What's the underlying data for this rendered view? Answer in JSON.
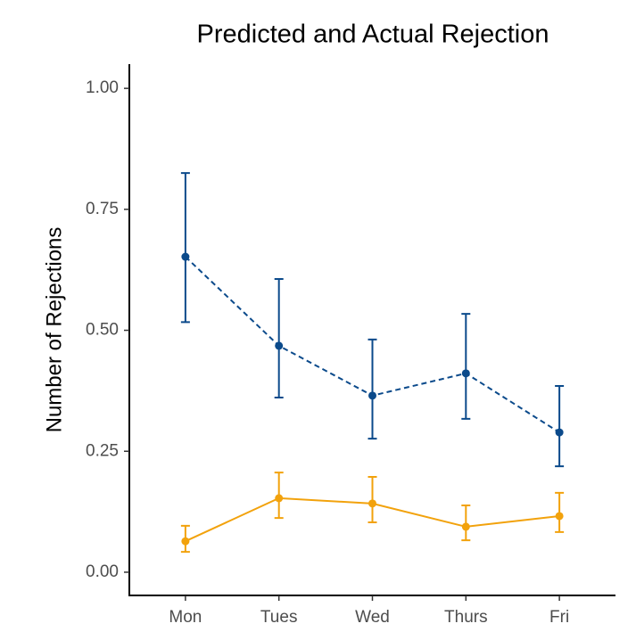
{
  "chart_data": {
    "type": "line",
    "title": "Predicted and Actual Rejection",
    "y_label": "Number of Rejections",
    "categories": [
      "Mon",
      "Tues",
      "Wed",
      "Thurs",
      "Fri"
    ],
    "series": [
      {
        "color": "#0b4a8b",
        "line_style": "dashed",
        "values": [
          0.652,
          0.468,
          0.365,
          0.411,
          0.289
        ],
        "lower": [
          0.517,
          0.361,
          0.276,
          0.317,
          0.219
        ],
        "upper": [
          0.825,
          0.606,
          0.481,
          0.534,
          0.385
        ]
      },
      {
        "color": "#f2a20c",
        "line_style": "solid",
        "values": [
          0.064,
          0.153,
          0.142,
          0.094,
          0.116
        ],
        "lower": [
          0.042,
          0.112,
          0.103,
          0.066,
          0.083
        ],
        "upper": [
          0.096,
          0.206,
          0.197,
          0.138,
          0.164
        ]
      }
    ],
    "ylim": [
      -0.048,
      1.05
    ],
    "yticks": [
      {
        "value": 0,
        "label": "0.00"
      },
      {
        "value": 0.25,
        "label": "0.25"
      },
      {
        "value": 0.5,
        "label": "0.50"
      },
      {
        "value": 0.75,
        "label": "0.75"
      },
      {
        "value": 1,
        "label": "1.00"
      }
    ],
    "grid": false
  }
}
